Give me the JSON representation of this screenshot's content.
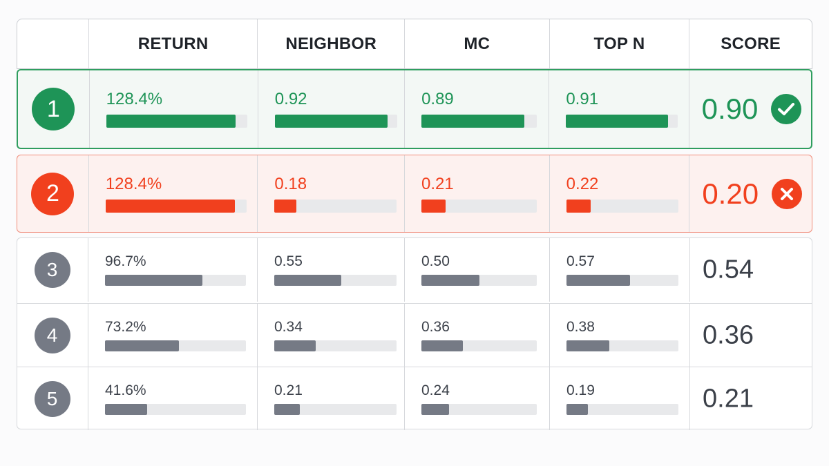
{
  "columns": {
    "return": "RETURN",
    "neighbor": "NEIGHBOR",
    "mc": "MC",
    "topn": "TOP N",
    "score": "SCORE"
  },
  "colors": {
    "pass": "#1e9457",
    "fail": "#f1401e",
    "neutral": "#757a85"
  },
  "chart_data": {
    "type": "table",
    "columns": [
      "RETURN",
      "NEIGHBOR",
      "MC",
      "TOP N",
      "SCORE"
    ],
    "bar_scale": {
      "return_max_percent": 140,
      "metric_max": 1.0
    },
    "rows": [
      {
        "rank": "1",
        "status": "pass",
        "status_icon": "check-circle-icon",
        "return_label": "128.4%",
        "return_value": 128.4,
        "neighbor_label": "0.92",
        "neighbor_value": 0.92,
        "mc_label": "0.89",
        "mc_value": 0.89,
        "topn_label": "0.91",
        "topn_value": 0.91,
        "score_label": "0.90"
      },
      {
        "rank": "2",
        "status": "fail",
        "status_icon": "x-circle-icon",
        "return_label": "128.4%",
        "return_value": 128.4,
        "neighbor_label": "0.18",
        "neighbor_value": 0.18,
        "mc_label": "0.21",
        "mc_value": 0.21,
        "topn_label": "0.22",
        "topn_value": 0.22,
        "score_label": "0.20"
      },
      {
        "rank": "3",
        "status": "neutral",
        "return_label": "96.7%",
        "return_value": 96.7,
        "neighbor_label": "0.55",
        "neighbor_value": 0.55,
        "mc_label": "0.50",
        "mc_value": 0.5,
        "topn_label": "0.57",
        "topn_value": 0.57,
        "score_label": "0.54"
      },
      {
        "rank": "4",
        "status": "neutral",
        "return_label": "73.2%",
        "return_value": 73.2,
        "neighbor_label": "0.34",
        "neighbor_value": 0.34,
        "mc_label": "0.36",
        "mc_value": 0.36,
        "topn_label": "0.38",
        "topn_value": 0.38,
        "score_label": "0.36"
      },
      {
        "rank": "5",
        "status": "neutral",
        "return_label": "41.6%",
        "return_value": 41.6,
        "neighbor_label": "0.21",
        "neighbor_value": 0.21,
        "mc_label": "0.24",
        "mc_value": 0.24,
        "topn_label": "0.19",
        "topn_value": 0.19,
        "score_label": "0.21"
      }
    ]
  }
}
